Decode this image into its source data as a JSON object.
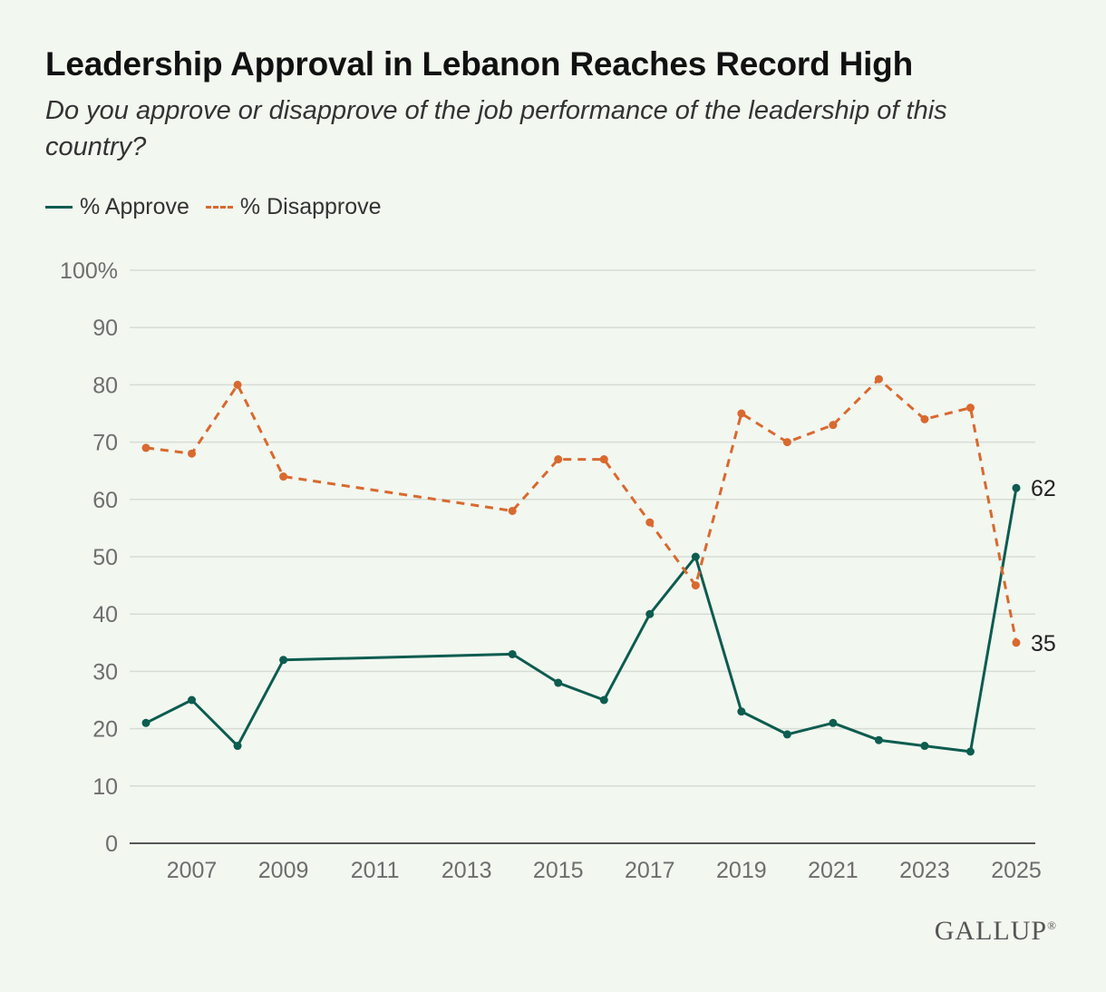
{
  "chart_data": {
    "type": "line",
    "title": "Leadership Approval in Lebanon Reaches Record High",
    "subtitle": "Do you approve or disapprove of the job performance of the leadership of this country?",
    "xlabel": "",
    "ylabel": "",
    "ylim": [
      0,
      100
    ],
    "xlim": [
      2006,
      2025
    ],
    "y_ticks": [
      {
        "value": 0,
        "label": "0"
      },
      {
        "value": 10,
        "label": "10"
      },
      {
        "value": 20,
        "label": "20"
      },
      {
        "value": 30,
        "label": "30"
      },
      {
        "value": 40,
        "label": "40"
      },
      {
        "value": 50,
        "label": "50"
      },
      {
        "value": 60,
        "label": "60"
      },
      {
        "value": 70,
        "label": "70"
      },
      {
        "value": 80,
        "label": "80"
      },
      {
        "value": 90,
        "label": "90"
      },
      {
        "value": 100,
        "label": "100%"
      }
    ],
    "x_ticks": [
      2007,
      2009,
      2011,
      2013,
      2015,
      2017,
      2019,
      2021,
      2023,
      2025
    ],
    "grid": true,
    "legend_position": "top-left",
    "series": [
      {
        "name": "% Approve",
        "color": "#0c5c4f",
        "style": "solid",
        "points": [
          {
            "x": 2006,
            "y": 21
          },
          {
            "x": 2007,
            "y": 25
          },
          {
            "x": 2008,
            "y": 17
          },
          {
            "x": 2009,
            "y": 32
          },
          {
            "x": 2014,
            "y": 33
          },
          {
            "x": 2015,
            "y": 28
          },
          {
            "x": 2016,
            "y": 25
          },
          {
            "x": 2017,
            "y": 40
          },
          {
            "x": 2018,
            "y": 50
          },
          {
            "x": 2019,
            "y": 23
          },
          {
            "x": 2020,
            "y": 19
          },
          {
            "x": 2021,
            "y": 21
          },
          {
            "x": 2022,
            "y": 18
          },
          {
            "x": 2023,
            "y": 17
          },
          {
            "x": 2024,
            "y": 16
          },
          {
            "x": 2025,
            "y": 62
          }
        ],
        "end_label": "62"
      },
      {
        "name": "% Disapprove",
        "color": "#d9692f",
        "style": "dashed",
        "points": [
          {
            "x": 2006,
            "y": 69
          },
          {
            "x": 2007,
            "y": 68
          },
          {
            "x": 2008,
            "y": 80
          },
          {
            "x": 2009,
            "y": 64
          },
          {
            "x": 2014,
            "y": 58
          },
          {
            "x": 2015,
            "y": 67
          },
          {
            "x": 2016,
            "y": 67
          },
          {
            "x": 2017,
            "y": 56
          },
          {
            "x": 2018,
            "y": 45
          },
          {
            "x": 2019,
            "y": 75
          },
          {
            "x": 2020,
            "y": 70
          },
          {
            "x": 2021,
            "y": 73
          },
          {
            "x": 2022,
            "y": 81
          },
          {
            "x": 2023,
            "y": 74
          },
          {
            "x": 2024,
            "y": 76
          },
          {
            "x": 2025,
            "y": 35
          }
        ],
        "end_label": "35"
      }
    ]
  },
  "brand": {
    "name": "GALLUP",
    "mark": "®"
  }
}
